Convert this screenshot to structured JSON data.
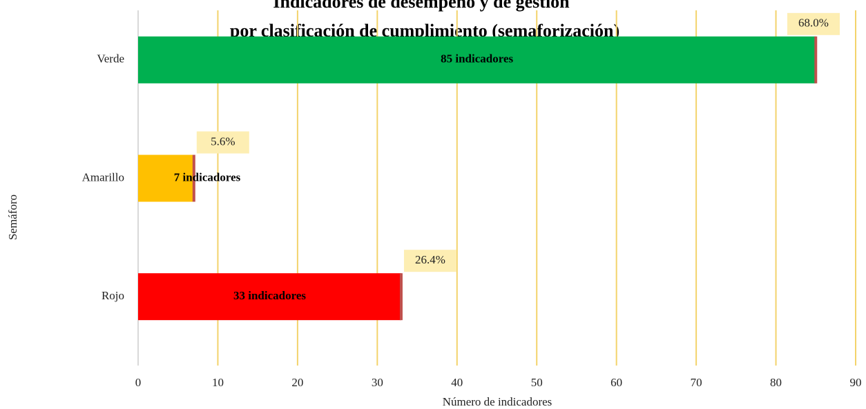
{
  "chart_data": {
    "type": "barh",
    "title": "Indicadores de desempeño y de gestión",
    "subtitle": "por clasificación de cumplimiento (semaforización)",
    "xlabel": "Número de indicadores",
    "ylabel": "Semáforo",
    "categories": [
      "Verde",
      "Amarillo",
      "Rojo"
    ],
    "values": [
      85,
      7,
      33
    ],
    "value_labels": [
      "85 indicadores",
      "7 indicadores",
      "33 indicadores"
    ],
    "shares": [
      68.0,
      5.6,
      26.4
    ],
    "share_labels": [
      "68.0%",
      "5.6%",
      "26.4%"
    ],
    "colors": [
      "#00b050",
      "#ffc000",
      "#ff0000"
    ],
    "xlim": [
      0,
      90
    ],
    "xticks": [
      0,
      10,
      20,
      30,
      40,
      50,
      60,
      70,
      80,
      90
    ],
    "grid": true
  }
}
